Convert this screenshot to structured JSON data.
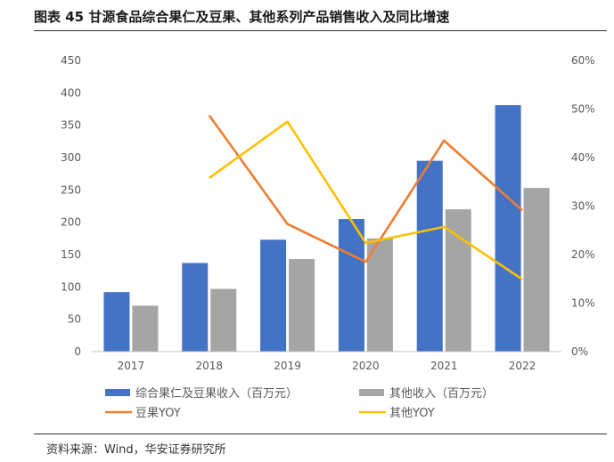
{
  "title": "图表 45 甘源食品综合果仁及豆果、其他系列产品销售收入及同比增速",
  "source": "资料来源：Wind，华安证券研究所",
  "chart_data": {
    "type": "bar",
    "categories": [
      "2017",
      "2018",
      "2019",
      "2020",
      "2021",
      "2022"
    ],
    "ylim": [
      0,
      450
    ],
    "y_ticks": [
      "0",
      "50",
      "100",
      "150",
      "200",
      "250",
      "300",
      "350",
      "400",
      "450"
    ],
    "y2lim": [
      0,
      60
    ],
    "y2_ticks": [
      "0%",
      "10%",
      "20%",
      "30%",
      "40%",
      "50%",
      "60%"
    ],
    "grid": false,
    "legend_position": "bottom",
    "series": [
      {
        "name": "综合果仁及豆果收入（百万元）",
        "type": "bar",
        "axis": "left",
        "color": "#4472C4",
        "values": [
          92,
          137,
          173,
          205,
          295,
          381
        ]
      },
      {
        "name": "其他收入（百万元）",
        "type": "bar",
        "axis": "left",
        "color": "#A5A5A5",
        "values": [
          71,
          97,
          143,
          175,
          220,
          253
        ]
      },
      {
        "name": "豆果YOY",
        "type": "line",
        "axis": "right",
        "color": "#ED7D31",
        "values": [
          null,
          48.7,
          26.3,
          18.5,
          43.5,
          29.1
        ]
      },
      {
        "name": "其他YOY",
        "type": "line",
        "axis": "right",
        "color": "#FFC000",
        "values": [
          null,
          35.8,
          47.4,
          22.4,
          25.7,
          14.9
        ]
      }
    ]
  }
}
